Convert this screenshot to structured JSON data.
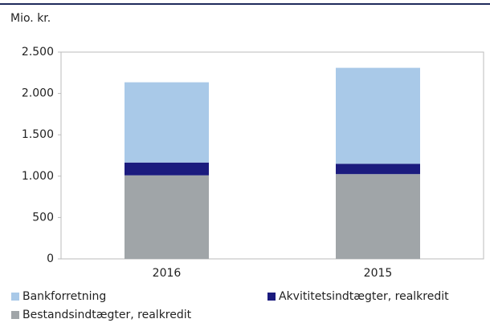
{
  "chart_data": {
    "type": "stacked_bar",
    "subtitle": "Mio. kr.",
    "categories": [
      "2016",
      "2015"
    ],
    "series": [
      {
        "name": "Bankforretning",
        "color": "#a9c9e8",
        "values": [
          970,
          1160
        ]
      },
      {
        "name": "Akvititetsindtægter, realkredit",
        "color": "#1b1b7e",
        "values": [
          155,
          125
        ]
      },
      {
        "name": "Bestandsindtægter, realkredit",
        "color": "#a0a5a8",
        "values": [
          1010,
          1025
        ]
      }
    ],
    "ylim": [
      0,
      2500
    ],
    "yticks": [
      0,
      500,
      {
        "value": 1000,
        "label": "1.000"
      },
      {
        "value": 1500,
        "label": "1.500"
      },
      {
        "value": 2000,
        "label": "2.000"
      },
      {
        "value": 2500,
        "label": "2.500"
      }
    ],
    "grid": false,
    "legend": "bottom"
  }
}
